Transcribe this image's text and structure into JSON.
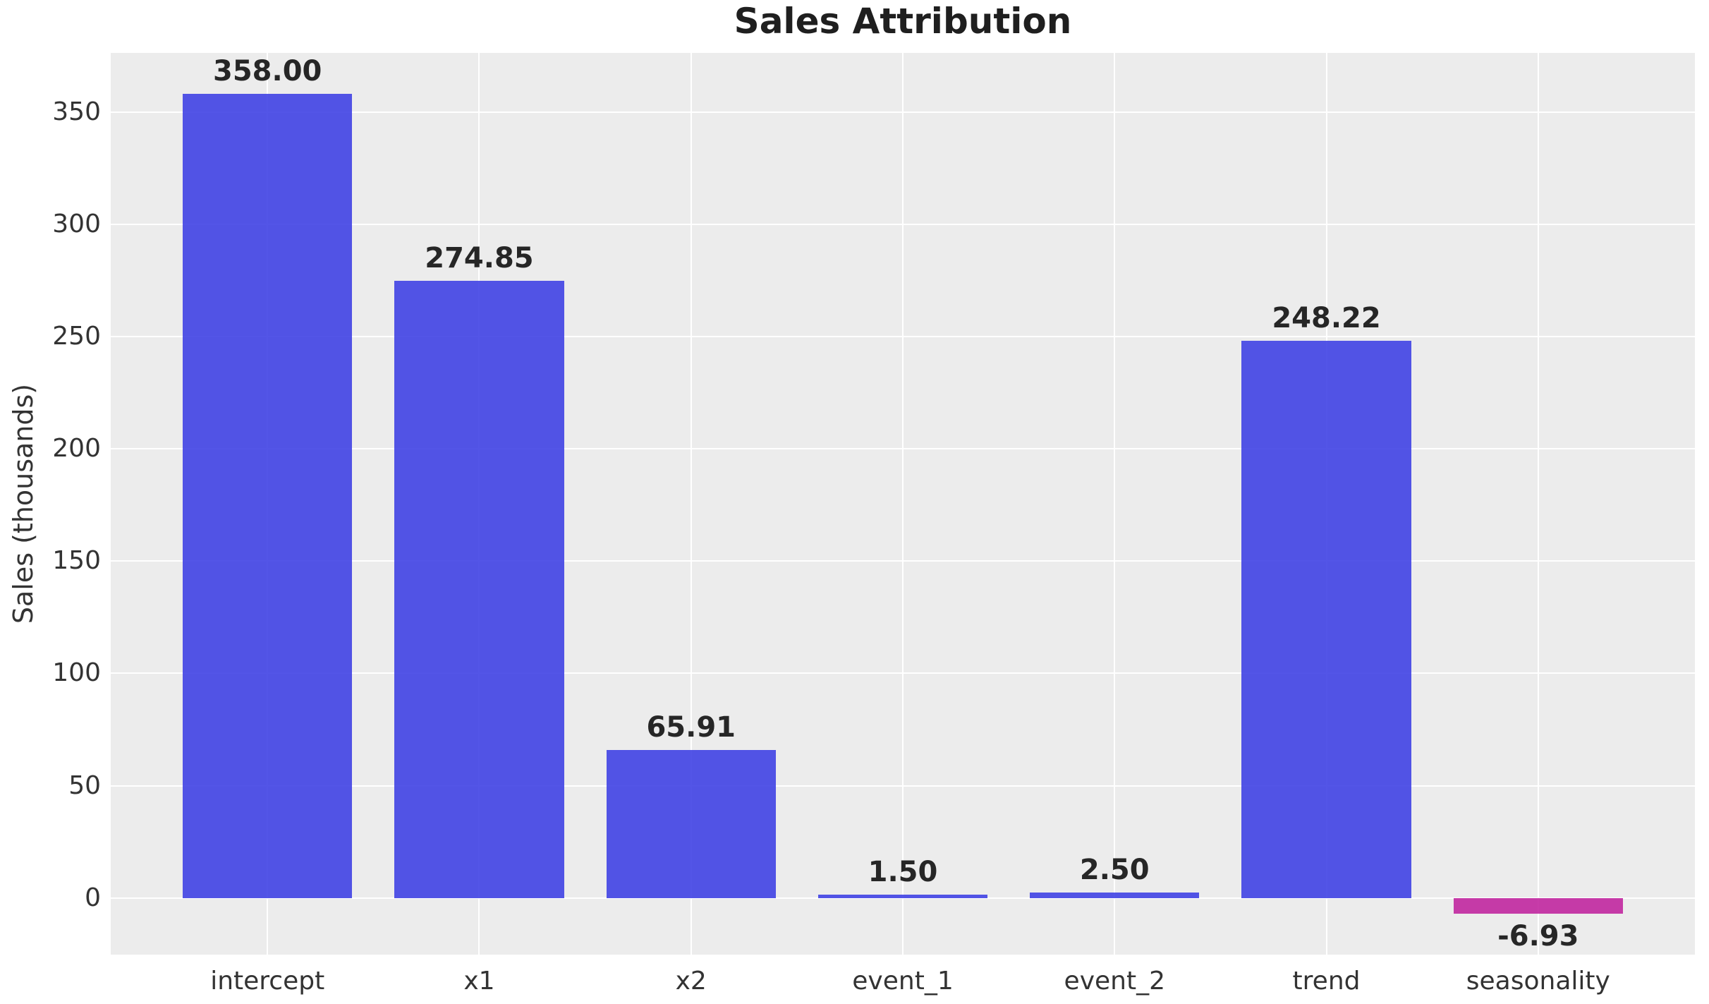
{
  "chart_data": {
    "type": "bar",
    "title": "Sales Attribution",
    "ylabel": "Sales (thousands)",
    "xlabel": "",
    "categories": [
      "intercept",
      "x1",
      "x2",
      "event_1",
      "event_2",
      "trend",
      "seasonality"
    ],
    "values": [
      358.0,
      274.85,
      65.91,
      1.5,
      2.5,
      248.22,
      -6.93
    ],
    "bar_labels": [
      "358.00",
      "274.85",
      "65.91",
      "1.50",
      "2.50",
      "248.22",
      "-6.93"
    ],
    "yticks": [
      0,
      50,
      100,
      150,
      200,
      250,
      300,
      350
    ],
    "ylim": [
      -25.18,
      376.25
    ],
    "grid": true,
    "legend_position": "none",
    "colors": {
      "bar_positive": "#4043E4",
      "bar_negative": "#C127A0",
      "bar_alpha": 0.9,
      "plot_background": "#ECECEC",
      "gridline": "#FFFFFF",
      "tick_text": "#333333",
      "title_text": "#1F1F1F",
      "value_label_text": "#262626"
    }
  }
}
